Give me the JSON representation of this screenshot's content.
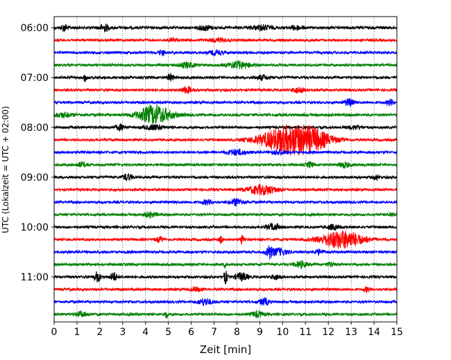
{
  "chart_data": {
    "type": "line",
    "subtype": "helicorder",
    "title": "",
    "xlabel": "Zeit  [min]",
    "ylabel": "UTC (Lokalzeit = UTC + 02:00)",
    "xlim": [
      0,
      15
    ],
    "x_ticks": [
      0,
      1,
      2,
      3,
      4,
      5,
      6,
      7,
      8,
      9,
      10,
      11,
      12,
      13,
      14,
      15
    ],
    "x_tick_labels": [
      "0",
      "1",
      "2",
      "3",
      "4",
      "5",
      "6",
      "7",
      "8",
      "9",
      "10",
      "11",
      "12",
      "13",
      "14",
      "15"
    ],
    "y_tick_labels": [
      "06:00",
      "07:00",
      "08:00",
      "09:00",
      "10:00",
      "11:00"
    ],
    "grid": "vertical dotted at each minute",
    "trace_color_cycle": [
      "#000000",
      "#ff0000",
      "#0000ff",
      "#008000"
    ],
    "trace_interval_min": 15,
    "series": [
      {
        "start": "06:00",
        "color": "#000000",
        "amp": 0.18,
        "events": [
          [
            0.45,
            0.45,
            0.1
          ],
          [
            2.2,
            0.45,
            0.15
          ],
          [
            6.6,
            0.3,
            0.2
          ],
          [
            9.1,
            0.3,
            0.3
          ],
          [
            10.6,
            0.25,
            0.2
          ]
        ]
      },
      {
        "start": "06:15",
        "color": "#ff0000",
        "amp": 0.16,
        "events": [
          [
            5.2,
            0.3,
            0.1
          ],
          [
            7.2,
            0.2,
            0.3
          ]
        ]
      },
      {
        "start": "06:30",
        "color": "#0000ff",
        "amp": 0.16,
        "events": [
          [
            4.7,
            0.3,
            0.1
          ],
          [
            7.1,
            0.3,
            0.2
          ]
        ]
      },
      {
        "start": "06:45",
        "color": "#008000",
        "amp": 0.16,
        "events": [
          [
            5.8,
            0.35,
            0.25
          ],
          [
            8.1,
            0.45,
            0.35
          ]
        ]
      },
      {
        "start": "07:00",
        "color": "#000000",
        "amp": 0.16,
        "events": [
          [
            1.35,
            0.5,
            0.05
          ],
          [
            5.1,
            0.45,
            0.1
          ],
          [
            9.1,
            0.3,
            0.2
          ]
        ]
      },
      {
        "start": "07:15",
        "color": "#ff0000",
        "amp": 0.16,
        "events": [
          [
            5.8,
            0.45,
            0.15
          ],
          [
            10.7,
            0.35,
            0.2
          ]
        ]
      },
      {
        "start": "07:30",
        "color": "#0000ff",
        "amp": 0.16,
        "events": [
          [
            12.9,
            0.45,
            0.15
          ],
          [
            14.7,
            0.4,
            0.1
          ]
        ]
      },
      {
        "start": "07:45",
        "color": "#008000",
        "amp": 0.18,
        "events": [
          [
            4.4,
            1.2,
            0.5
          ],
          [
            0.4,
            0.25,
            0.3
          ]
        ]
      },
      {
        "start": "08:00",
        "color": "#000000",
        "amp": 0.16,
        "events": [
          [
            2.9,
            0.35,
            0.15
          ],
          [
            4.4,
            0.3,
            0.3
          ],
          [
            13.2,
            0.25,
            0.2
          ]
        ]
      },
      {
        "start": "08:15",
        "color": "#ff0000",
        "amp": 0.16,
        "events": [
          [
            10.4,
            1.9,
            0.9
          ],
          [
            11.4,
            0.5,
            0.5
          ]
        ]
      },
      {
        "start": "08:30",
        "color": "#0000ff",
        "amp": 0.16,
        "events": [
          [
            8.0,
            0.35,
            0.3
          ],
          [
            9.8,
            0.3,
            0.2
          ]
        ]
      },
      {
        "start": "08:45",
        "color": "#008000",
        "amp": 0.16,
        "events": [
          [
            1.2,
            0.3,
            0.15
          ],
          [
            11.2,
            0.35,
            0.1
          ],
          [
            12.7,
            0.35,
            0.15
          ]
        ]
      },
      {
        "start": "09:00",
        "color": "#000000",
        "amp": 0.16,
        "events": [
          [
            3.2,
            0.4,
            0.15
          ],
          [
            14.1,
            0.3,
            0.1
          ]
        ]
      },
      {
        "start": "09:15",
        "color": "#ff0000",
        "amp": 0.16,
        "events": [
          [
            9.1,
            0.6,
            0.45
          ]
        ]
      },
      {
        "start": "09:30",
        "color": "#0000ff",
        "amp": 0.16,
        "events": [
          [
            6.7,
            0.3,
            0.15
          ],
          [
            8.0,
            0.45,
            0.2
          ]
        ]
      },
      {
        "start": "09:45",
        "color": "#008000",
        "amp": 0.16,
        "events": [
          [
            4.2,
            0.3,
            0.2
          ],
          [
            14.8,
            0.25,
            0.1
          ]
        ]
      },
      {
        "start": "10:00",
        "color": "#000000",
        "amp": 0.16,
        "events": [
          [
            9.6,
            0.4,
            0.2
          ],
          [
            12.2,
            0.3,
            0.2
          ]
        ]
      },
      {
        "start": "10:15",
        "color": "#ff0000",
        "amp": 0.16,
        "events": [
          [
            12.6,
            1.15,
            0.65
          ],
          [
            7.3,
            0.5,
            0.05
          ],
          [
            8.2,
            0.6,
            0.05
          ],
          [
            4.6,
            0.3,
            0.1
          ]
        ]
      },
      {
        "start": "10:30",
        "color": "#0000ff",
        "amp": 0.16,
        "events": [
          [
            9.4,
            0.9,
            0.08
          ],
          [
            9.8,
            0.45,
            0.3
          ],
          [
            11.6,
            0.3,
            0.15
          ]
        ]
      },
      {
        "start": "10:45",
        "color": "#008000",
        "amp": 0.16,
        "events": [
          [
            7.5,
            0.45,
            0.05
          ],
          [
            10.8,
            0.4,
            0.2
          ],
          [
            12.1,
            0.3,
            0.1
          ]
        ]
      },
      {
        "start": "11:00",
        "color": "#000000",
        "amp": 0.16,
        "events": [
          [
            1.9,
            0.65,
            0.1
          ],
          [
            2.6,
            0.6,
            0.1
          ],
          [
            7.5,
            0.85,
            0.06
          ],
          [
            8.2,
            0.5,
            0.2
          ],
          [
            9.7,
            0.3,
            0.15
          ]
        ]
      },
      {
        "start": "11:15",
        "color": "#ff0000",
        "amp": 0.16,
        "events": [
          [
            6.2,
            0.25,
            0.2
          ],
          [
            13.7,
            0.3,
            0.1
          ]
        ]
      },
      {
        "start": "11:30",
        "color": "#0000ff",
        "amp": 0.16,
        "events": [
          [
            6.6,
            0.45,
            0.2
          ],
          [
            9.2,
            0.45,
            0.15
          ]
        ]
      },
      {
        "start": "11:45",
        "color": "#008000",
        "amp": 0.16,
        "events": [
          [
            1.2,
            0.3,
            0.2
          ],
          [
            4.9,
            0.45,
            0.05
          ],
          [
            8.9,
            0.35,
            0.2
          ]
        ]
      }
    ]
  }
}
